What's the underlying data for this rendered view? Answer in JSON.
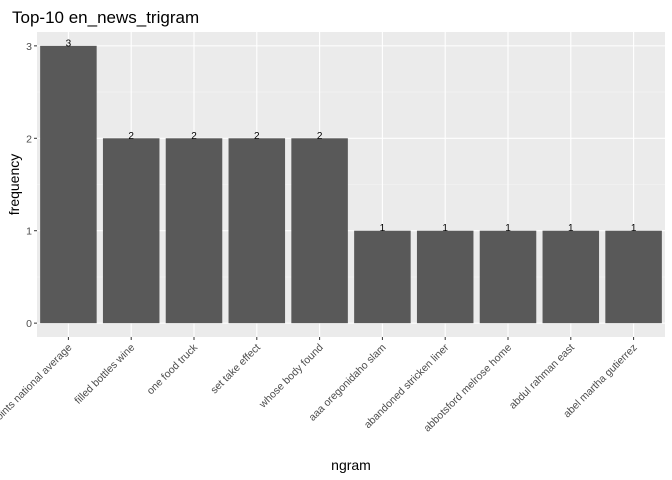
{
  "chart_data": {
    "type": "bar",
    "title": "Top-10 en_news_trigram",
    "xlabel": "ngram",
    "ylabel": "frequency",
    "categories": [
      "points national average",
      "filled bottles wine",
      "one food truck",
      "set take effect",
      "whose body found",
      "aaa oregonidaho slam",
      "abandoned stricken liner",
      "abbotsford melrose home",
      "abdul rahman east",
      "abel martha gutierrez"
    ],
    "values": [
      3,
      2,
      2,
      2,
      2,
      1,
      1,
      1,
      1,
      1
    ],
    "data_labels": [
      "3",
      "2",
      "2",
      "2",
      "2",
      "1",
      "1",
      "1",
      "1",
      "1"
    ],
    "y_ticks": [
      0,
      1,
      2,
      3
    ],
    "y_tick_labels": [
      "0",
      "1",
      "2",
      "3"
    ],
    "ylim": [
      -0.15,
      3.15
    ],
    "grid": true,
    "legend": "none",
    "colors": {
      "bar": "#595959",
      "panel_background": "#ebebeb",
      "grid_major": "#ffffff",
      "grid_minor": "#f5f5f5",
      "tick_text": "#4d4d4d",
      "tick_mark": "#333333"
    }
  }
}
